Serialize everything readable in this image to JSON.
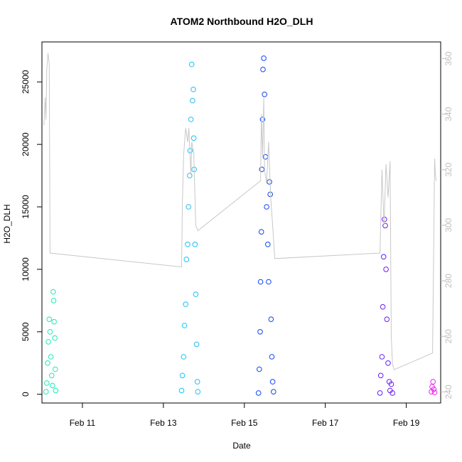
{
  "chart_data": {
    "type": "scatter",
    "title": "ATOM2 Northbound H2O_DLH",
    "xlabel": "Date",
    "ylabel": "H2O_DLH",
    "x_ticks": [
      "Feb 11",
      "Feb 13",
      "Feb 15",
      "Feb 17",
      "Feb 19"
    ],
    "x_range_days": [
      10.0,
      19.85
    ],
    "y_left": {
      "ticks": [
        0,
        5000,
        10000,
        15000,
        20000,
        25000
      ],
      "ylim": [
        -700,
        28200
      ]
    },
    "y_right": {
      "ticks": [
        240,
        260,
        280,
        300,
        320,
        340,
        360
      ],
      "ylim": [
        236,
        366
      ],
      "color": "#bebebe"
    },
    "grid": false,
    "legend": "none",
    "series": [
      {
        "color": "#1de9b6",
        "points": [
          [
            10.1,
            200
          ],
          [
            10.12,
            900
          ],
          [
            10.14,
            2500
          ],
          [
            10.16,
            4200
          ],
          [
            10.18,
            6000
          ],
          [
            10.2,
            5000
          ],
          [
            10.22,
            3000
          ],
          [
            10.24,
            1500
          ],
          [
            10.26,
            700
          ],
          [
            10.28,
            8200
          ],
          [
            10.29,
            7500
          ],
          [
            10.3,
            5800
          ],
          [
            10.32,
            4500
          ],
          [
            10.33,
            2000
          ],
          [
            10.34,
            300
          ]
        ]
      },
      {
        "color": "#1ec0f0",
        "points": [
          [
            13.45,
            300
          ],
          [
            13.47,
            1500
          ],
          [
            13.5,
            3000
          ],
          [
            13.52,
            5500
          ],
          [
            13.55,
            7200
          ],
          [
            13.57,
            10800
          ],
          [
            13.6,
            12000
          ],
          [
            13.62,
            15000
          ],
          [
            13.65,
            17500
          ],
          [
            13.66,
            19500
          ],
          [
            13.68,
            22000
          ],
          [
            13.7,
            26400
          ],
          [
            13.72,
            23500
          ],
          [
            13.74,
            24400
          ],
          [
            13.75,
            20500
          ],
          [
            13.76,
            18000
          ],
          [
            13.78,
            12000
          ],
          [
            13.8,
            8000
          ],
          [
            13.82,
            4000
          ],
          [
            13.84,
            1000
          ],
          [
            13.85,
            200
          ]
        ]
      },
      {
        "color": "#0d44f5",
        "points": [
          [
            15.35,
            100
          ],
          [
            15.37,
            2000
          ],
          [
            15.39,
            5000
          ],
          [
            15.4,
            9000
          ],
          [
            15.42,
            13000
          ],
          [
            15.43,
            18000
          ],
          [
            15.45,
            22000
          ],
          [
            15.46,
            26000
          ],
          [
            15.48,
            26900
          ],
          [
            15.5,
            24000
          ],
          [
            15.52,
            19000
          ],
          [
            15.55,
            15000
          ],
          [
            15.58,
            12000
          ],
          [
            15.6,
            9000
          ],
          [
            15.62,
            17000
          ],
          [
            15.64,
            16000
          ],
          [
            15.66,
            6000
          ],
          [
            15.68,
            3000
          ],
          [
            15.7,
            1000
          ],
          [
            15.72,
            200
          ]
        ]
      },
      {
        "color": "#6a1cf0",
        "points": [
          [
            18.35,
            100
          ],
          [
            18.37,
            1500
          ],
          [
            18.4,
            3000
          ],
          [
            18.42,
            7000
          ],
          [
            18.44,
            11000
          ],
          [
            18.46,
            14000
          ],
          [
            18.48,
            13500
          ],
          [
            18.5,
            10000
          ],
          [
            18.52,
            6000
          ],
          [
            18.55,
            2500
          ],
          [
            18.58,
            1000
          ],
          [
            18.6,
            300
          ],
          [
            18.63,
            800
          ],
          [
            18.66,
            100
          ]
        ]
      },
      {
        "color": "#f01ef0",
        "points": [
          [
            19.62,
            200
          ],
          [
            19.64,
            600
          ],
          [
            19.66,
            1000
          ],
          [
            19.68,
            400
          ],
          [
            19.7,
            150
          ]
        ]
      }
    ],
    "line_series": {
      "color": "#c8c8c8",
      "axis": "right",
      "points": [
        [
          10.05,
          336
        ],
        [
          10.08,
          346
        ],
        [
          10.1,
          338
        ],
        [
          10.12,
          356
        ],
        [
          10.15,
          362
        ],
        [
          10.18,
          358
        ],
        [
          10.2,
          290
        ],
        [
          13.45,
          285
        ],
        [
          13.47,
          308
        ],
        [
          13.5,
          325
        ],
        [
          13.55,
          335
        ],
        [
          13.6,
          330
        ],
        [
          13.63,
          335
        ],
        [
          13.65,
          328
        ],
        [
          13.68,
          318
        ],
        [
          13.7,
          330
        ],
        [
          13.75,
          326
        ],
        [
          13.8,
          300
        ],
        [
          13.85,
          298
        ],
        [
          15.4,
          316
        ],
        [
          15.42,
          340
        ],
        [
          15.45,
          325
        ],
        [
          15.48,
          346
        ],
        [
          15.5,
          320
        ],
        [
          15.55,
          315
        ],
        [
          15.6,
          330
        ],
        [
          15.65,
          310
        ],
        [
          15.7,
          300
        ],
        [
          15.75,
          288
        ],
        [
          18.35,
          290
        ],
        [
          18.4,
          320
        ],
        [
          18.45,
          300
        ],
        [
          18.5,
          322
        ],
        [
          18.55,
          310
        ],
        [
          18.6,
          323
        ],
        [
          18.63,
          260
        ],
        [
          18.66,
          250
        ],
        [
          18.7,
          248
        ],
        [
          19.65,
          254
        ],
        [
          19.7,
          324
        ],
        [
          19.72,
          318
        ],
        [
          19.74,
          316
        ]
      ]
    }
  }
}
